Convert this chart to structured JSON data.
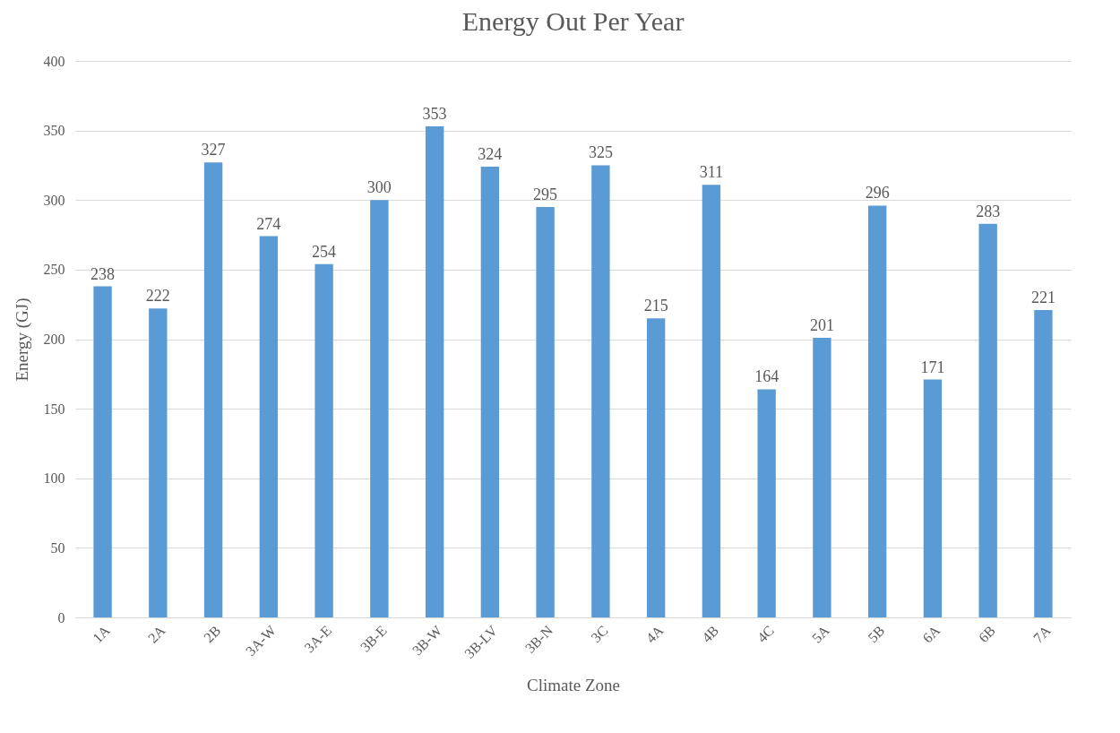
{
  "chart_data": {
    "type": "bar",
    "title": "Energy Out Per Year",
    "xlabel": "Climate Zone",
    "ylabel": "Energy (GJ)",
    "categories": [
      "1A",
      "2A",
      "2B",
      "3A-W",
      "3A-E",
      "3B-E",
      "3B-W",
      "3B-LV",
      "3B-N",
      "3C",
      "4A",
      "4B",
      "4C",
      "5A",
      "5B",
      "6A",
      "6B",
      "7A"
    ],
    "values": [
      238,
      222,
      327,
      274,
      254,
      300,
      353,
      324,
      295,
      325,
      215,
      311,
      164,
      201,
      296,
      171,
      283,
      221
    ],
    "color": "#5b9bd5",
    "ylim": [
      0,
      400
    ],
    "yticks": [
      0,
      50,
      100,
      150,
      200,
      250,
      300,
      350,
      400
    ],
    "grid": "y",
    "data_labels": true
  }
}
